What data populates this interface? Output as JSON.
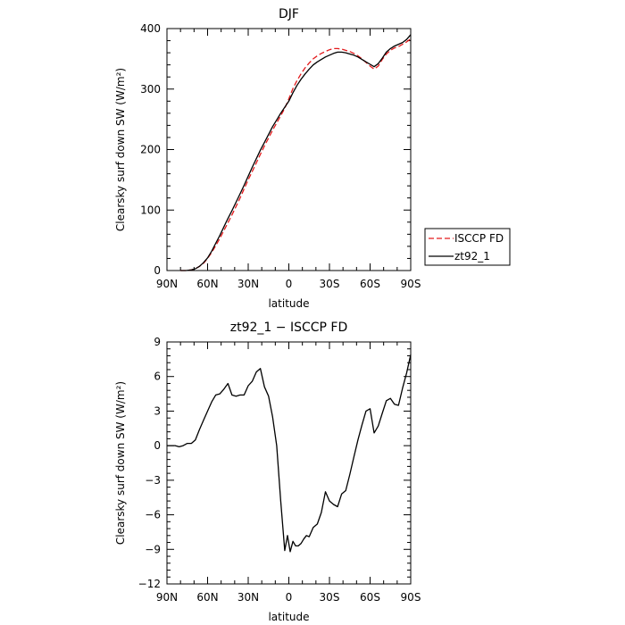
{
  "chart_data": [
    {
      "type": "line",
      "title": "DJF",
      "xlabel": "latitude",
      "ylabel": "Clearsky surf down SW (W/m²)",
      "xlim": [
        -90,
        90
      ],
      "ylim": [
        0,
        400
      ],
      "x_ticks": [
        -90,
        -60,
        -30,
        0,
        30,
        60,
        90
      ],
      "x_tick_labels": [
        "90N",
        "60N",
        "30N",
        "0",
        "30S",
        "60S",
        "90S"
      ],
      "y_ticks": [
        0,
        100,
        200,
        300,
        400
      ],
      "y_tick_labels": [
        "0",
        "100",
        "200",
        "300",
        "400"
      ],
      "grid": false,
      "legend": "right",
      "series": [
        {
          "name": "ISCCP FD",
          "color": "#e31a1c",
          "dash": "dashed",
          "x": [
            -80,
            -76,
            -72,
            -69,
            -66,
            -63,
            -60,
            -57,
            -54,
            -51,
            -48,
            -45,
            -42,
            -39,
            -36,
            -33,
            -30,
            -27,
            -24,
            -21,
            -18,
            -15,
            -12,
            -9,
            -6,
            -3,
            0,
            3,
            6,
            9,
            12,
            15,
            18,
            21,
            24,
            27,
            30,
            33,
            36,
            39,
            42,
            45,
            48,
            51,
            54,
            57,
            60,
            63,
            66,
            69,
            72,
            75,
            78,
            81,
            84,
            87,
            90
          ],
          "y": [
            0,
            0,
            1,
            3,
            7,
            12,
            20,
            30,
            41,
            53,
            66,
            79,
            92,
            106,
            120,
            135,
            150,
            164,
            178,
            192,
            206,
            219,
            232,
            244,
            256,
            268,
            284,
            301,
            314,
            325,
            335,
            343,
            350,
            355,
            359,
            362,
            365,
            367,
            367,
            366,
            364,
            362,
            359,
            355,
            350,
            344,
            338,
            333,
            338,
            349,
            358,
            364,
            368,
            370,
            374,
            378,
            383
          ]
        },
        {
          "name": "zt92_1",
          "color": "#000000",
          "dash": "solid",
          "x": [
            -80,
            -76,
            -72,
            -69,
            -66,
            -63,
            -60,
            -57,
            -54,
            -51,
            -48,
            -45,
            -42,
            -39,
            -36,
            -33,
            -30,
            -27,
            -24,
            -21,
            -18,
            -15,
            -12,
            -9,
            -6,
            -3,
            0,
            3,
            6,
            9,
            12,
            15,
            18,
            21,
            24,
            27,
            30,
            33,
            36,
            39,
            42,
            45,
            48,
            51,
            54,
            57,
            60,
            63,
            66,
            69,
            72,
            75,
            78,
            81,
            84,
            87,
            90
          ],
          "y": [
            0,
            0,
            1,
            3,
            7,
            13,
            21,
            32,
            45,
            58,
            72,
            86,
            99,
            113,
            127,
            141,
            156,
            171,
            185,
            199,
            212,
            225,
            238,
            249,
            260,
            270,
            280,
            294,
            306,
            316,
            325,
            333,
            340,
            345,
            349,
            353,
            356,
            359,
            361,
            361,
            360,
            358,
            356,
            353,
            349,
            345,
            341,
            337,
            342,
            351,
            361,
            367,
            371,
            374,
            377,
            382,
            390
          ]
        }
      ]
    },
    {
      "type": "line",
      "title": "zt92_1 − ISCCP FD",
      "xlabel": "latitude",
      "ylabel": "Clearsky surf down SW (W/m²)",
      "xlim": [
        -90,
        90
      ],
      "ylim": [
        -12,
        9
      ],
      "x_ticks": [
        -90,
        -60,
        -30,
        0,
        30,
        60,
        90
      ],
      "x_tick_labels": [
        "90N",
        "60N",
        "30N",
        "0",
        "30S",
        "60S",
        "90S"
      ],
      "y_ticks": [
        -12,
        -9,
        -6,
        -3,
        0,
        3,
        6,
        9
      ],
      "y_tick_labels": [
        "−12",
        "−9",
        "−6",
        "−3",
        "0",
        "3",
        "6",
        "9"
      ],
      "grid": false,
      "series": [
        {
          "name": "",
          "color": "#000000",
          "dash": "solid",
          "x": [
            -90,
            -87,
            -84,
            -81,
            -78,
            -75,
            -72,
            -69,
            -66,
            -63,
            -60,
            -57,
            -54,
            -51,
            -48,
            -45,
            -42,
            -39,
            -36,
            -33,
            -30,
            -27,
            -24,
            -21,
            -18,
            -15,
            -12,
            -9,
            -6,
            -3,
            -1,
            1,
            3,
            5,
            7,
            9,
            11,
            13,
            15,
            18,
            21,
            24,
            27,
            30,
            33,
            36,
            39,
            42,
            45,
            48,
            51,
            54,
            57,
            60,
            63,
            66,
            69,
            72,
            75,
            78,
            81,
            84,
            87,
            90
          ],
          "y": [
            0,
            0,
            0,
            -0.1,
            0,
            0.2,
            0.2,
            0.5,
            1.4,
            2.2,
            3.0,
            3.8,
            4.4,
            4.5,
            4.9,
            5.4,
            4.4,
            4.3,
            4.4,
            4.4,
            5.2,
            5.6,
            6.4,
            6.7,
            5.1,
            4.3,
            2.5,
            0,
            -4.8,
            -9.1,
            -7.8,
            -9.2,
            -8.3,
            -8.7,
            -8.7,
            -8.5,
            -8.1,
            -7.8,
            -7.9,
            -7.1,
            -6.8,
            -5.8,
            -4.0,
            -4.8,
            -5.1,
            -5.3,
            -4.2,
            -3.9,
            -2.5,
            -1.0,
            0.5,
            1.8,
            3.0,
            3.2,
            1.1,
            1.7,
            2.8,
            3.9,
            4.1,
            3.6,
            3.5,
            5.0,
            6.3,
            7.9
          ]
        }
      ]
    }
  ]
}
